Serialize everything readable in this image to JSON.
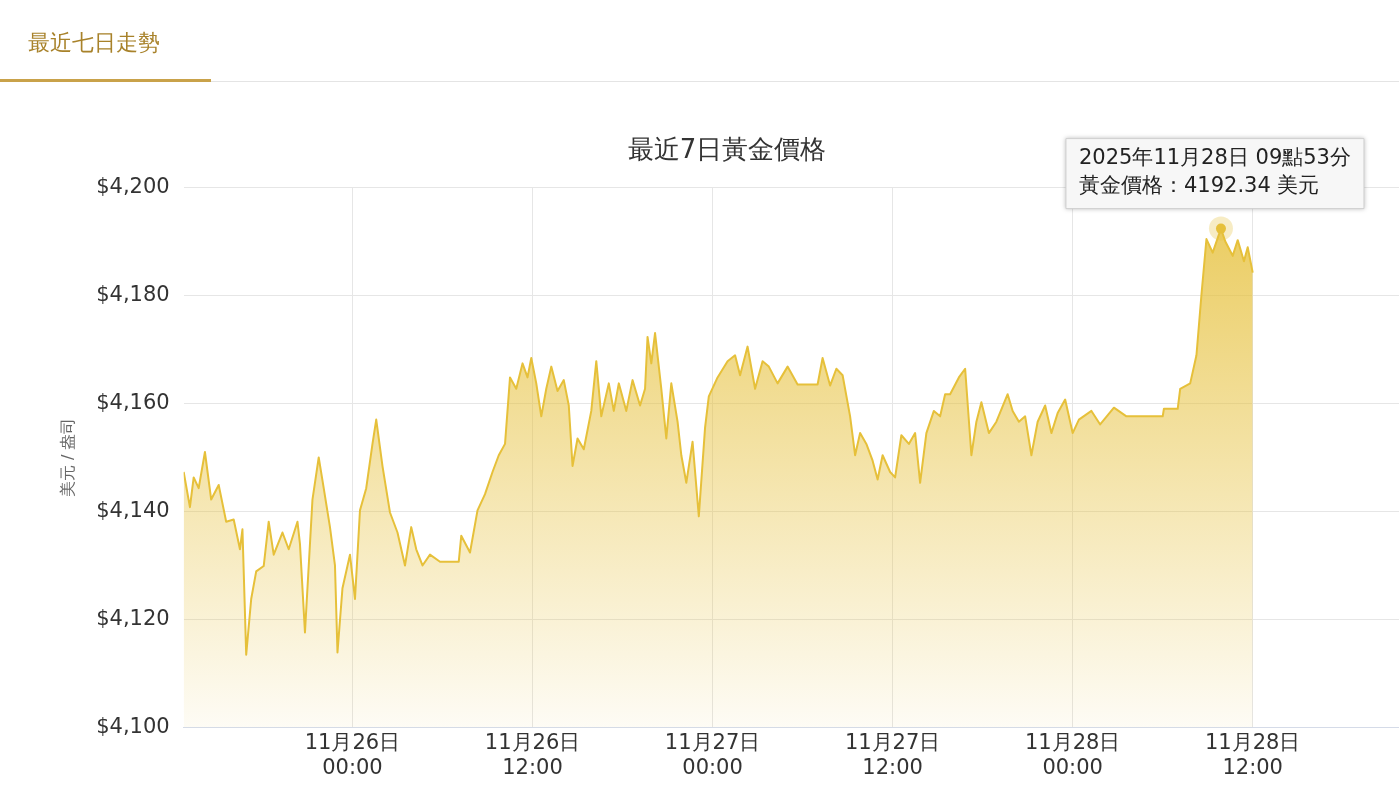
{
  "chart_data": {
    "type": "area",
    "title": "最近7日黃金價格",
    "ylabel": "美元 / 盎司",
    "color": "#e6c03a",
    "grid": true,
    "marker": "none",
    "legend": false,
    "xlim": [
      "2025-11-25T12:45",
      "2025-11-28T21:45"
    ],
    "xticks": [
      {
        "value": "2025-11-26T00:00",
        "label": "11月26日 00:00"
      },
      {
        "value": "2025-11-26T12:00",
        "label": "11月26日 12:00"
      },
      {
        "value": "2025-11-27T00:00",
        "label": "11月27日 00:00"
      },
      {
        "value": "2025-11-27T12:00",
        "label": "11月27日 12:00"
      },
      {
        "value": "2025-11-28T00:00",
        "label": "11月28日 00:00"
      },
      {
        "value": "2025-11-28T12:00",
        "label": "11月28日 12:00"
      }
    ],
    "ylim": [
      4100,
      4200
    ],
    "yticks": [
      {
        "value": 4100,
        "label": "$4,100"
      },
      {
        "value": 4120,
        "label": "$4,120"
      },
      {
        "value": 4140,
        "label": "$4,140"
      },
      {
        "value": 4160,
        "label": "$4,160"
      },
      {
        "value": 4180,
        "label": "$4,180"
      },
      {
        "value": 4200,
        "label": "$4,200"
      }
    ],
    "x": [
      "2025-11-25T12:45",
      "2025-11-25T13:10",
      "2025-11-25T13:25",
      "2025-11-25T13:45",
      "2025-11-25T14:10",
      "2025-11-25T14:35",
      "2025-11-25T15:05",
      "2025-11-25T15:35",
      "2025-11-25T16:05",
      "2025-11-25T16:30",
      "2025-11-25T16:40",
      "2025-11-25T16:55",
      "2025-11-25T17:15",
      "2025-11-25T17:35",
      "2025-11-25T18:05",
      "2025-11-25T18:25",
      "2025-11-25T18:45",
      "2025-11-25T19:20",
      "2025-11-25T19:45",
      "2025-11-25T20:20",
      "2025-11-25T20:30",
      "2025-11-25T20:50",
      "2025-11-25T21:20",
      "2025-11-25T21:45",
      "2025-11-25T22:05",
      "2025-11-25T22:30",
      "2025-11-25T22:50",
      "2025-11-25T23:00",
      "2025-11-25T23:20",
      "2025-11-25T23:50",
      "2025-11-26T00:10",
      "2025-11-26T00:30",
      "2025-11-26T00:55",
      "2025-11-26T01:20",
      "2025-11-26T01:35",
      "2025-11-26T02:00",
      "2025-11-26T02:30",
      "2025-11-26T03:00",
      "2025-11-26T03:30",
      "2025-11-26T03:55",
      "2025-11-26T04:15",
      "2025-11-26T04:40",
      "2025-11-26T05:10",
      "2025-11-26T05:50",
      "2025-11-26T07:05",
      "2025-11-26T07:15",
      "2025-11-26T07:50",
      "2025-11-26T08:20",
      "2025-11-26T08:50",
      "2025-11-26T09:20",
      "2025-11-26T09:45",
      "2025-11-26T10:10",
      "2025-11-26T10:30",
      "2025-11-26T10:55",
      "2025-11-26T11:20",
      "2025-11-26T11:40",
      "2025-11-26T11:55",
      "2025-11-26T12:15",
      "2025-11-26T12:35",
      "2025-11-26T12:55",
      "2025-11-26T13:15",
      "2025-11-26T13:40",
      "2025-11-26T14:05",
      "2025-11-26T14:25",
      "2025-11-26T14:40",
      "2025-11-26T15:00",
      "2025-11-26T15:25",
      "2025-11-26T15:55",
      "2025-11-26T16:15",
      "2025-11-26T16:35",
      "2025-11-26T17:05",
      "2025-11-26T17:25",
      "2025-11-26T17:45",
      "2025-11-26T18:15",
      "2025-11-26T18:40",
      "2025-11-26T19:10",
      "2025-11-26T19:30",
      "2025-11-26T19:40",
      "2025-11-26T19:55",
      "2025-11-26T20:10",
      "2025-11-26T20:35",
      "2025-11-26T20:55",
      "2025-11-26T21:15",
      "2025-11-26T21:40",
      "2025-11-26T21:55",
      "2025-11-26T22:15",
      "2025-11-26T22:40",
      "2025-11-26T23:05",
      "2025-11-26T23:30",
      "2025-11-26T23:45",
      "2025-11-27T00:20",
      "2025-11-27T01:00",
      "2025-11-27T01:30",
      "2025-11-27T01:50",
      "2025-11-27T02:20",
      "2025-11-27T02:50",
      "2025-11-27T03:20",
      "2025-11-27T03:45",
      "2025-11-27T04:20",
      "2025-11-27T05:00",
      "2025-11-27T05:40",
      "2025-11-27T07:00",
      "2025-11-27T07:20",
      "2025-11-27T07:50",
      "2025-11-27T08:15",
      "2025-11-27T08:40",
      "2025-11-27T09:10",
      "2025-11-27T09:30",
      "2025-11-27T09:50",
      "2025-11-27T10:15",
      "2025-11-27T10:40",
      "2025-11-27T11:00",
      "2025-11-27T11:20",
      "2025-11-27T11:50",
      "2025-11-27T12:10",
      "2025-11-27T12:35",
      "2025-11-27T13:05",
      "2025-11-27T13:30",
      "2025-11-27T13:50",
      "2025-11-27T14:15",
      "2025-11-27T14:45",
      "2025-11-27T15:10",
      "2025-11-27T15:30",
      "2025-11-27T15:50",
      "2025-11-27T16:25",
      "2025-11-27T16:50",
      "2025-11-27T17:15",
      "2025-11-27T17:35",
      "2025-11-27T17:55",
      "2025-11-27T18:25",
      "2025-11-27T18:55",
      "2025-11-27T19:40",
      "2025-11-27T20:00",
      "2025-11-27T20:25",
      "2025-11-27T20:50",
      "2025-11-27T21:15",
      "2025-11-27T21:40",
      "2025-11-27T22:10",
      "2025-11-27T22:35",
      "2025-11-27T23:00",
      "2025-11-27T23:30",
      "2025-11-28T00:00",
      "2025-11-28T00:25",
      "2025-11-28T01:15",
      "2025-11-28T01:50",
      "2025-11-28T02:45",
      "2025-11-28T03:35",
      "2025-11-28T06:00",
      "2025-11-28T06:05",
      "2025-11-28T07:00",
      "2025-11-28T07:10",
      "2025-11-28T07:50",
      "2025-11-28T08:15",
      "2025-11-28T08:35",
      "2025-11-28T08:55",
      "2025-11-28T09:20",
      "2025-11-28T09:53",
      "2025-11-28T10:10",
      "2025-11-28T10:40",
      "2025-11-28T11:00",
      "2025-11-28T11:25",
      "2025-11-28T11:40",
      "2025-11-28T12:00"
    ],
    "values": [
      4147.3,
      4140.8,
      4146.3,
      4144.3,
      4151,
      4142.2,
      4144.9,
      4138.1,
      4138.5,
      4133,
      4136.7,
      4113.5,
      4123.8,
      4128.9,
      4129.9,
      4138.1,
      4132,
      4136.1,
      4133,
      4138.1,
      4134,
      4117.6,
      4142.2,
      4150,
      4144.3,
      4137.1,
      4130,
      4113.9,
      4125.8,
      4132,
      4123.8,
      4140.2,
      4144.3,
      4152.5,
      4157,
      4148.4,
      4139.8,
      4136.1,
      4130,
      4137.1,
      4133,
      4130,
      4132,
      4130.7,
      4130.7,
      4135.5,
      4132.4,
      4140.2,
      4143.2,
      4147.3,
      4150.4,
      4152.5,
      4164.8,
      4162.7,
      4167.4,
      4164.8,
      4168.4,
      4163.7,
      4157.6,
      4162.7,
      4166.8,
      4162.3,
      4164.3,
      4159.6,
      4148.4,
      4153.5,
      4151.5,
      4158.6,
      4167.8,
      4157.6,
      4163.7,
      4158.6,
      4163.7,
      4158.6,
      4164.3,
      4159.6,
      4162.7,
      4172.3,
      4167.4,
      4173,
      4162.7,
      4153.5,
      4163.7,
      4156.6,
      4150.4,
      4145.3,
      4152.9,
      4139.1,
      4155.5,
      4161.3,
      4164.8,
      4167.8,
      4168.9,
      4165.2,
      4170.5,
      4162.7,
      4167.8,
      4166.8,
      4163.7,
      4166.8,
      4163.5,
      4163.5,
      4168.4,
      4163.3,
      4166.4,
      4165.2,
      4157.6,
      4150.4,
      4154.5,
      4152.5,
      4149.4,
      4145.9,
      4150.4,
      4147.3,
      4146.3,
      4154.1,
      4152.5,
      4154.5,
      4145.3,
      4154.5,
      4158.6,
      4157.6,
      4161.7,
      4161.7,
      4164.8,
      4166.4,
      4150.4,
      4156.6,
      4160.2,
      4154.5,
      4156.6,
      4161.7,
      4158.6,
      4156.6,
      4157.6,
      4150.4,
      4156.6,
      4159.6,
      4154.5,
      4158.2,
      4160.7,
      4154.5,
      4157,
      4158.6,
      4156.1,
      4159.2,
      4157.6,
      4157.6,
      4159,
      4159,
      4162.7,
      4163.7,
      4168.9,
      4180.1,
      4190.4,
      4187.9,
      4192.34,
      4190,
      4187.3,
      4190.2,
      4186.3,
      4188.9,
      4184.2
    ],
    "annotations": [
      "最近七日走勢",
      {
        "text": "2025年11月28日 09點53分",
        "x": "2025-11-28T09:53",
        "y": 4192.34
      },
      {
        "text": "黃金價格：4192.34 美元",
        "x": "2025-11-28T09:53",
        "y": 4192.34
      }
    ]
  }
}
